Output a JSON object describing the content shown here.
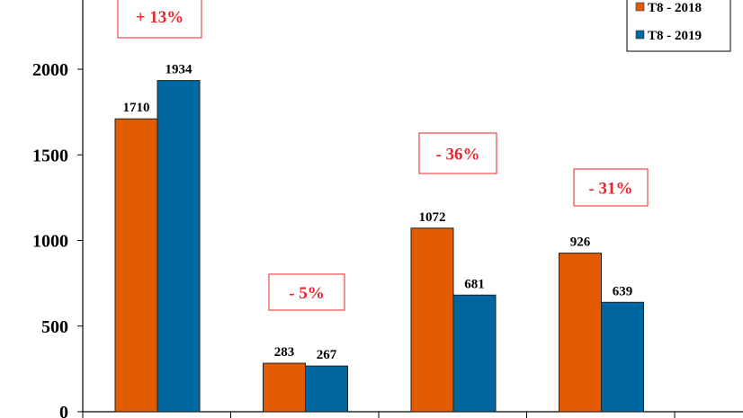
{
  "chart_data": {
    "type": "bar",
    "title": "",
    "xlabel": "",
    "ylabel": "",
    "ylim": [
      0,
      2500
    ],
    "yticks": [
      0,
      500,
      1000,
      1500,
      2000
    ],
    "ytick_labels": [
      "0",
      "500",
      "1000",
      "1500",
      "2000"
    ],
    "categories": [
      "",
      "",
      "",
      ""
    ],
    "series": [
      {
        "name": "T8 - 2018",
        "color": "#E35B00",
        "values": [
          1710,
          283,
          1072,
          926
        ]
      },
      {
        "name": "T8 - 2019",
        "color": "#0067A0",
        "values": [
          1934,
          267,
          681,
          639
        ]
      }
    ],
    "annotations": [
      "+ 13%",
      "- 5%",
      "- 36%",
      "- 31%"
    ],
    "annotation_color": "#E8242C",
    "legend_position": "top-right",
    "grid": false
  }
}
